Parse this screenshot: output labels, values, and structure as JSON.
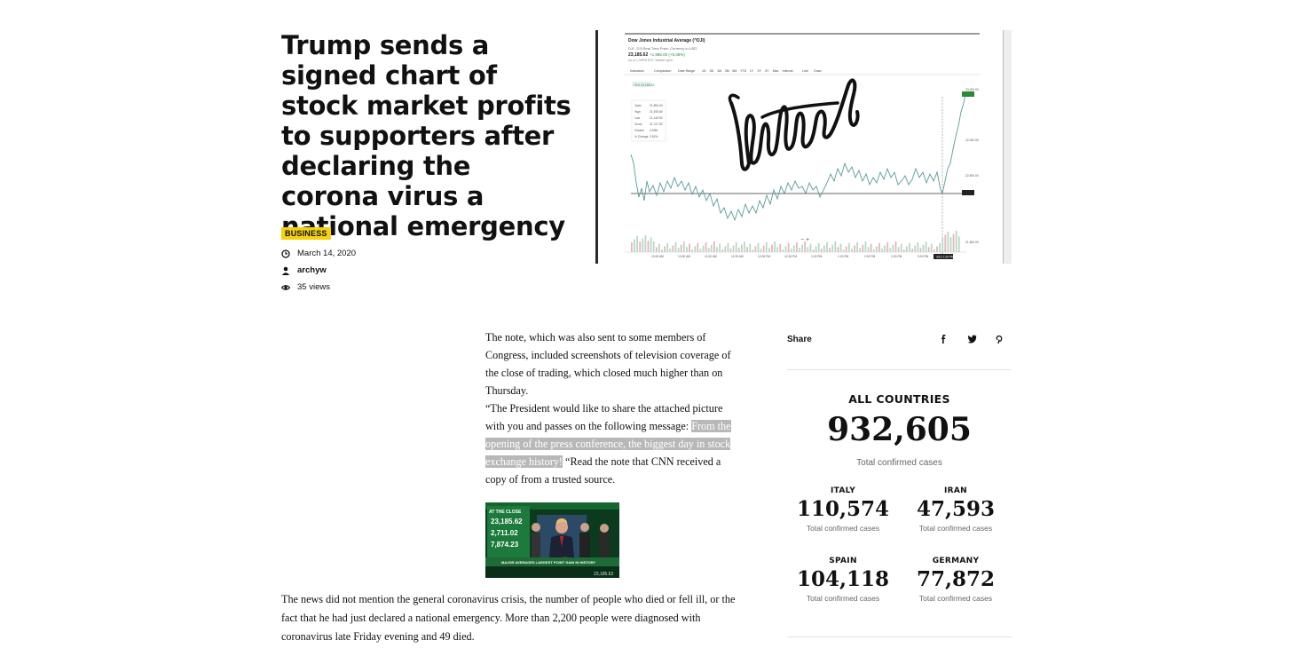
{
  "article": {
    "title": "Trump sends a signed chart of stock market profits to supporters after declaring the corona virus a national emergency",
    "category": "BUSINESS",
    "date": "March 14, 2020",
    "author": "archyw",
    "views": "35 views",
    "paragraph1": "The note, which was also sent to some members of Congress, included screenshots of television coverage of the close of trading, which closed much higher than on Thursday.",
    "paragraph2_start": "“The President would like to share the attached picture with you and passes on the following message: ",
    "paragraph2_highlight": "From the opening of the press conference, the biggest day in stock exchange history!",
    "paragraph2_end": " “Read the note that CNN received a copy of from a trusted source.",
    "bottom_paragraph": "The news did not mention the general coronavirus crisis, the number of people who died or fell ill, or the fact that he had just declared a national emergency. More than 2,200 people were diagnosed with coronavirus late Friday evening and 49 died."
  },
  "hero_chart": {
    "title": "Dow Jones Industrial Average (^DJI)",
    "price": "23,185.62",
    "change": "+1,985.00 (+9.36%)",
    "toolbar": [
      "Indicators",
      "Comparison",
      "Date Range",
      "1D",
      "5D",
      "1M",
      "3M",
      "6M",
      "YTD",
      "1Y",
      "2Y",
      "5Y",
      "Max",
      "Interval",
      "Line",
      "Draw"
    ],
    "price_labels": [
      "23,000.00",
      "22,000.00",
      "22,500.00",
      "21,500.00"
    ],
    "time_labels": [
      "10:00 AM",
      "10:30 AM",
      "11:00 AM",
      "11:30 AM",
      "12:00 PM",
      "12:30 PM",
      "1:00 PM",
      "1:30 PM",
      "2:00 PM",
      "2:30 PM",
      "3:00 PM"
    ]
  },
  "inline_image": {
    "caption_top": "AT THE CLOSE",
    "numbers": [
      "23,185.62",
      "2,711.02",
      "7,874.23"
    ],
    "banner": "MAJOR AVERAGES LARGEST POINT GAIN IN HISTORY"
  },
  "share": {
    "label": "Share",
    "facebook": "f",
    "twitter": "t",
    "pinterest": "p"
  },
  "covid": {
    "title": "ALL COUNTRIES",
    "total": "932,605",
    "total_sub": "Total confirmed cases",
    "countries": [
      {
        "name": "ITALY",
        "value": "110,574",
        "sub": "Total confirmed cases"
      },
      {
        "name": "IRAN",
        "value": "47,593",
        "sub": "Total confirmed cases"
      },
      {
        "name": "SPAIN",
        "value": "104,118",
        "sub": "Total confirmed cases"
      },
      {
        "name": "GERMANY",
        "value": "77,872",
        "sub": "Total confirmed cases"
      }
    ]
  },
  "colors": {
    "category_bg": "#f5d20d",
    "chart_line": "#5a9a9a",
    "highlight_bg": "#b8b8b8"
  }
}
